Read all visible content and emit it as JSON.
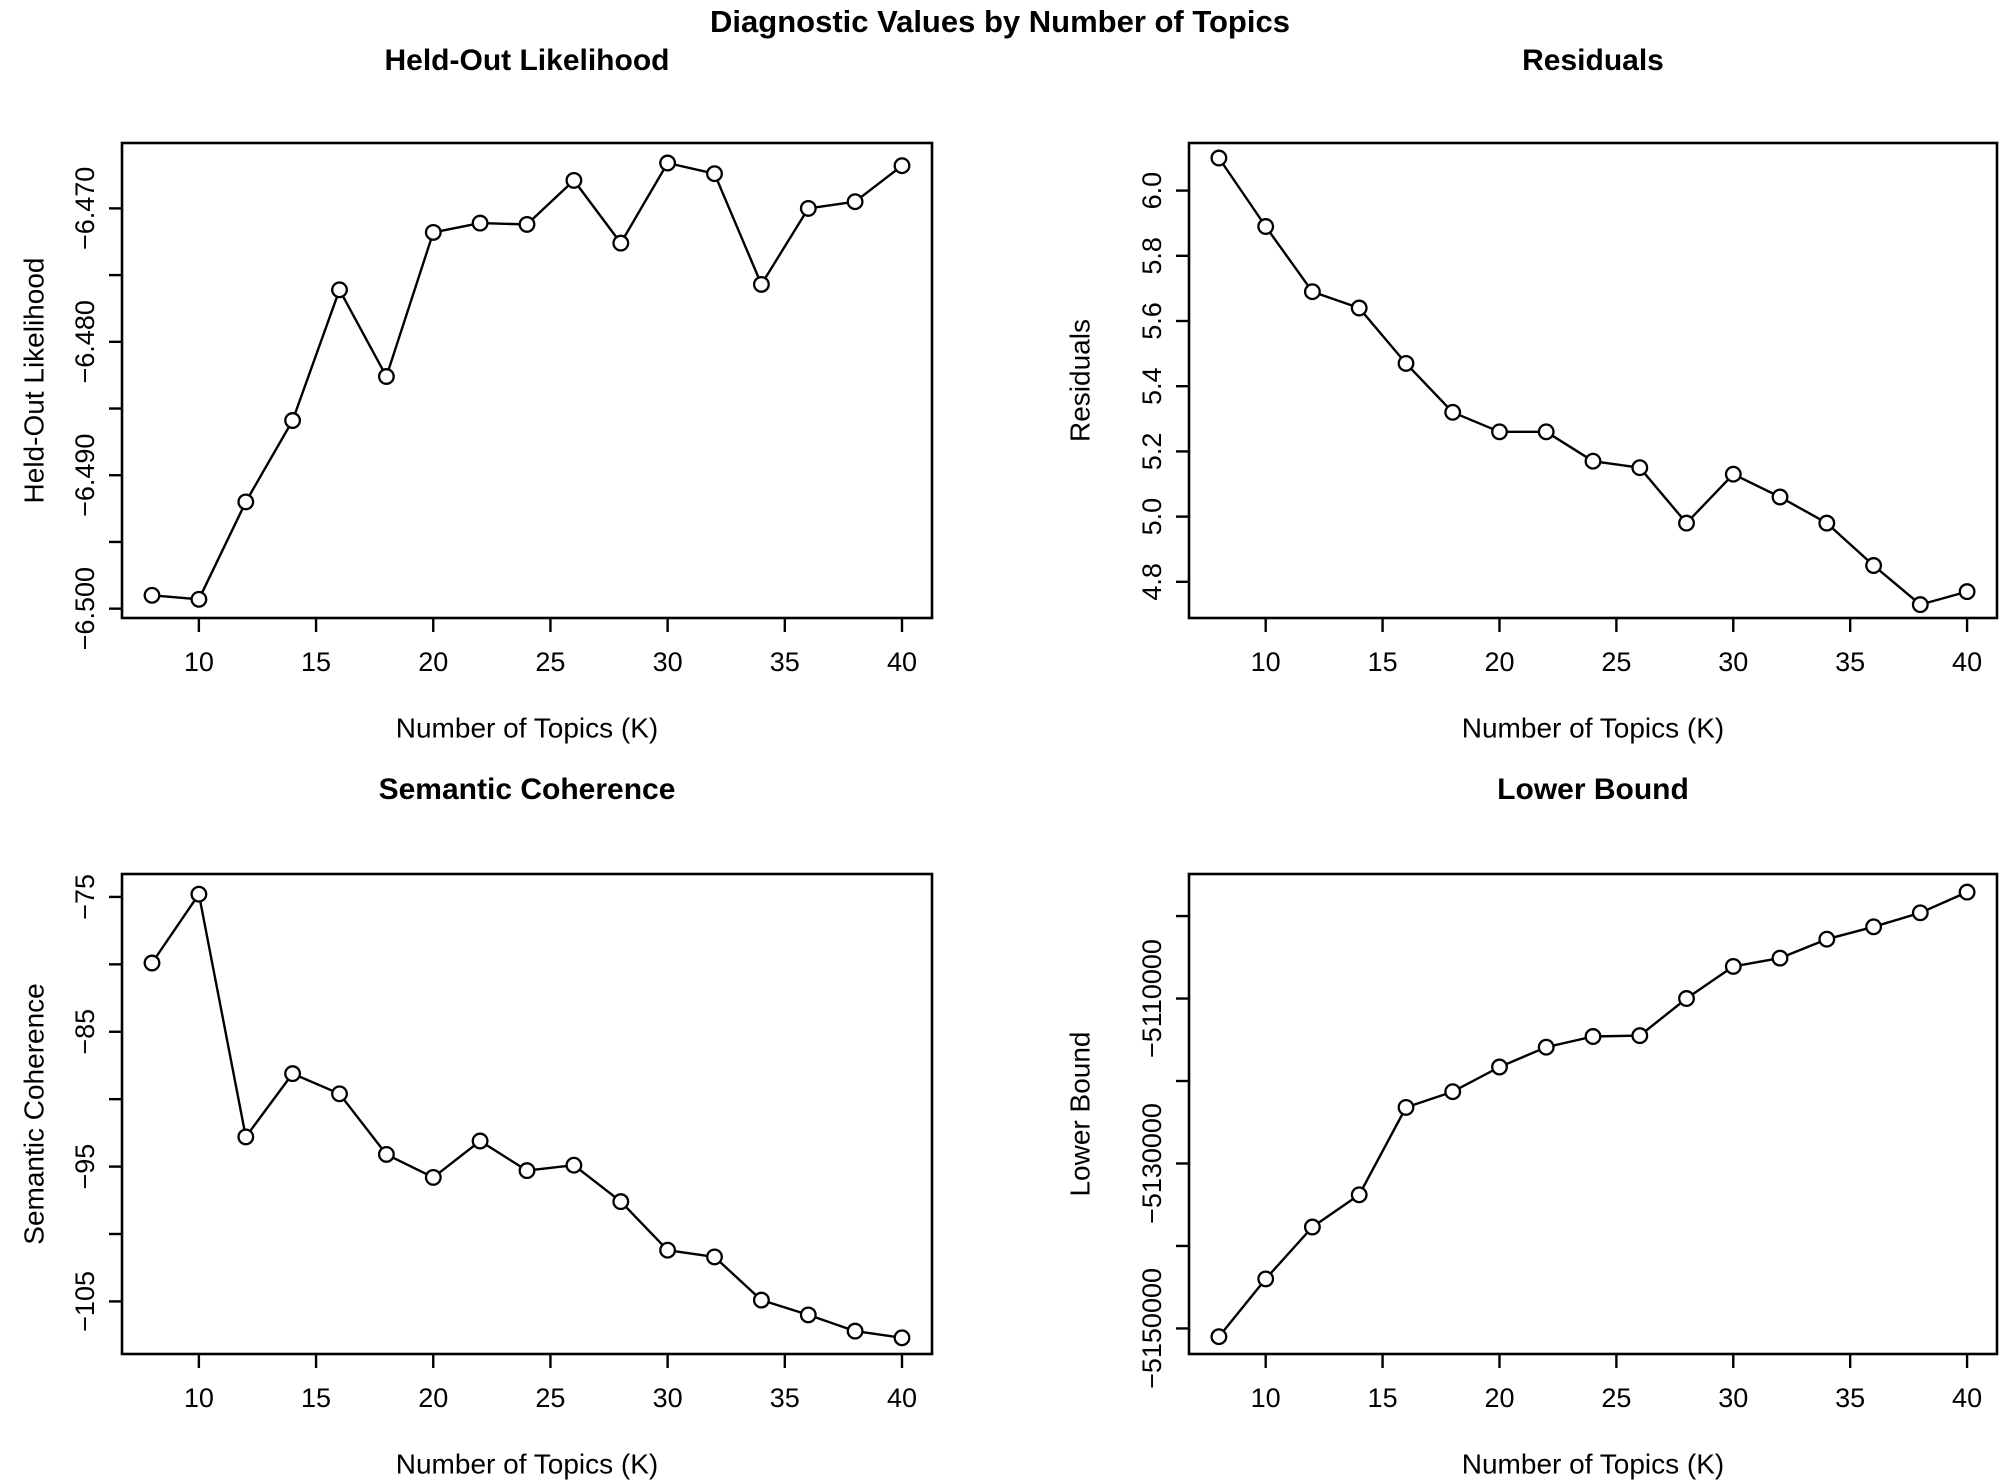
{
  "figure": {
    "main_title": "Diagnostic Values by Number of Topics",
    "background": "#ffffff",
    "line_color": "#000000",
    "marker": "open-circle"
  },
  "chart_data": [
    {
      "type": "line",
      "title": "Held-Out Likelihood",
      "xlabel": "Number of Topics (K)",
      "ylabel": "Held-Out Likelihood",
      "x": [
        8,
        10,
        12,
        14,
        16,
        18,
        20,
        22,
        24,
        26,
        28,
        30,
        32,
        34,
        36,
        38,
        40
      ],
      "values": [
        -6.499,
        -6.4993,
        -6.492,
        -6.4859,
        -6.4761,
        -6.4826,
        -6.4718,
        -6.4711,
        -6.4712,
        -6.4679,
        -6.4726,
        -6.4666,
        -6.4674,
        -6.4757,
        -6.47,
        -6.4695,
        -6.4668
      ],
      "xlim": [
        6.72,
        41.28
      ],
      "ylim": [
        -6.5007,
        -6.4651
      ],
      "grid": false,
      "legend": "none",
      "xticks": {
        "values": [
          10,
          15,
          20,
          25,
          30,
          35,
          40
        ],
        "labels": [
          "10",
          "15",
          "20",
          "25",
          "30",
          "35",
          "40"
        ]
      },
      "yticks": {
        "values": [
          -6.47,
          -6.48,
          -6.49,
          -6.5
        ],
        "labels": [
          "−6.470",
          "−6.480",
          "−6.490",
          "−6.500"
        ],
        "minor": [
          -6.475,
          -6.485,
          -6.495
        ]
      }
    },
    {
      "type": "line",
      "title": "Residuals",
      "xlabel": "Number of Topics (K)",
      "ylabel": "Residuals",
      "x": [
        8,
        10,
        12,
        14,
        16,
        18,
        20,
        22,
        24,
        26,
        28,
        30,
        32,
        34,
        36,
        38,
        40
      ],
      "values": [
        6.1,
        5.89,
        5.69,
        5.64,
        5.47,
        5.32,
        5.26,
        5.26,
        5.17,
        5.15,
        4.98,
        5.13,
        5.06,
        4.98,
        4.85,
        4.73,
        4.77
      ],
      "xlim": [
        6.72,
        41.28
      ],
      "ylim": [
        4.689,
        6.146
      ],
      "grid": false,
      "legend": "none",
      "xticks": {
        "values": [
          10,
          15,
          20,
          25,
          30,
          35,
          40
        ],
        "labels": [
          "10",
          "15",
          "20",
          "25",
          "30",
          "35",
          "40"
        ]
      },
      "yticks": {
        "values": [
          6.0,
          5.8,
          5.6,
          5.4,
          5.2,
          5.0,
          4.8
        ],
        "labels": [
          "6.0",
          "5.8",
          "5.6",
          "5.4",
          "5.2",
          "5.0",
          "4.8"
        ],
        "minor": []
      }
    },
    {
      "type": "line",
      "title": "Semantic Coherence",
      "xlabel": "Number of Topics (K)",
      "ylabel": "Semantic Coherence",
      "x": [
        8,
        10,
        12,
        14,
        16,
        18,
        20,
        22,
        24,
        26,
        28,
        30,
        32,
        34,
        36,
        38,
        40
      ],
      "values": [
        -79.9,
        -74.8,
        -92.8,
        -88.1,
        -89.6,
        -94.1,
        -95.8,
        -93.1,
        -95.3,
        -94.9,
        -97.6,
        -101.2,
        -101.7,
        -104.9,
        -106.0,
        -107.2,
        -107.7
      ],
      "xlim": [
        6.72,
        41.28
      ],
      "ylim": [
        -108.9,
        -73.3
      ],
      "grid": false,
      "legend": "none",
      "xticks": {
        "values": [
          10,
          15,
          20,
          25,
          30,
          35,
          40
        ],
        "labels": [
          "10",
          "15",
          "20",
          "25",
          "30",
          "35",
          "40"
        ]
      },
      "yticks": {
        "values": [
          -75,
          -85,
          -95,
          -105
        ],
        "labels": [
          "−75",
          "−85",
          "−95",
          "−105"
        ],
        "minor": [
          -80,
          -90,
          -100
        ]
      }
    },
    {
      "type": "line",
      "title": "Lower Bound",
      "xlabel": "Number of Topics (K)",
      "ylabel": "Lower Bound",
      "x": [
        8,
        10,
        12,
        14,
        16,
        18,
        20,
        22,
        24,
        26,
        28,
        30,
        32,
        34,
        36,
        38,
        40
      ],
      "values": [
        -5151000,
        -5144000,
        -5137700,
        -5133800,
        -5123200,
        -5121300,
        -5118300,
        -5115900,
        -5114600,
        -5114500,
        -5110000,
        -5106100,
        -5105100,
        -5102800,
        -5101300,
        -5099600,
        -5097100
      ],
      "xlim": [
        6.72,
        41.28
      ],
      "ylim": [
        -5153100,
        -5094900
      ],
      "grid": false,
      "legend": "none",
      "xticks": {
        "values": [
          10,
          15,
          20,
          25,
          30,
          35,
          40
        ],
        "labels": [
          "10",
          "15",
          "20",
          "25",
          "30",
          "35",
          "40"
        ]
      },
      "yticks": {
        "values": [
          -5110000,
          -5130000,
          -5150000
        ],
        "labels": [
          "−5110000",
          "−5130000",
          "−5150000"
        ],
        "minor": [
          -5100000,
          -5120000,
          -5140000
        ]
      }
    }
  ]
}
